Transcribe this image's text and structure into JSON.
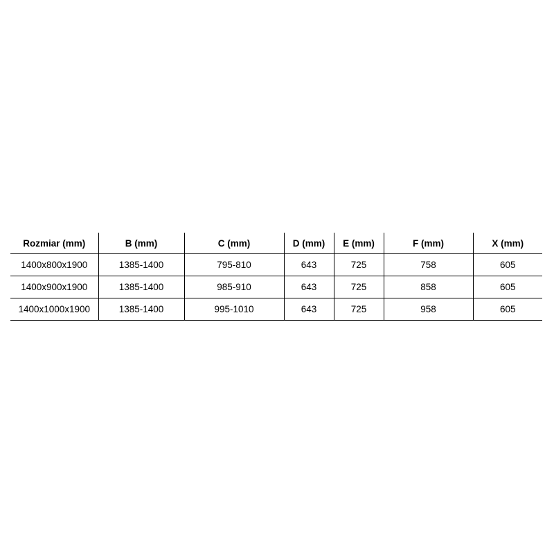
{
  "table": {
    "headers": [
      "Rozmiar (mm)",
      "B (mm)",
      "C (mm)",
      "D (mm)",
      "E (mm)",
      "F (mm)",
      "X (mm)"
    ],
    "rows": [
      [
        "1400x800x1900",
        "1385-1400",
        "795-810",
        "643",
        "725",
        "758",
        "605"
      ],
      [
        "1400x900x1900",
        "1385-1400",
        "985-910",
        "643",
        "725",
        "858",
        "605"
      ],
      [
        "1400x1000x1900",
        "1385-1400",
        "995-1010",
        "643",
        "725",
        "958",
        "605"
      ]
    ]
  }
}
